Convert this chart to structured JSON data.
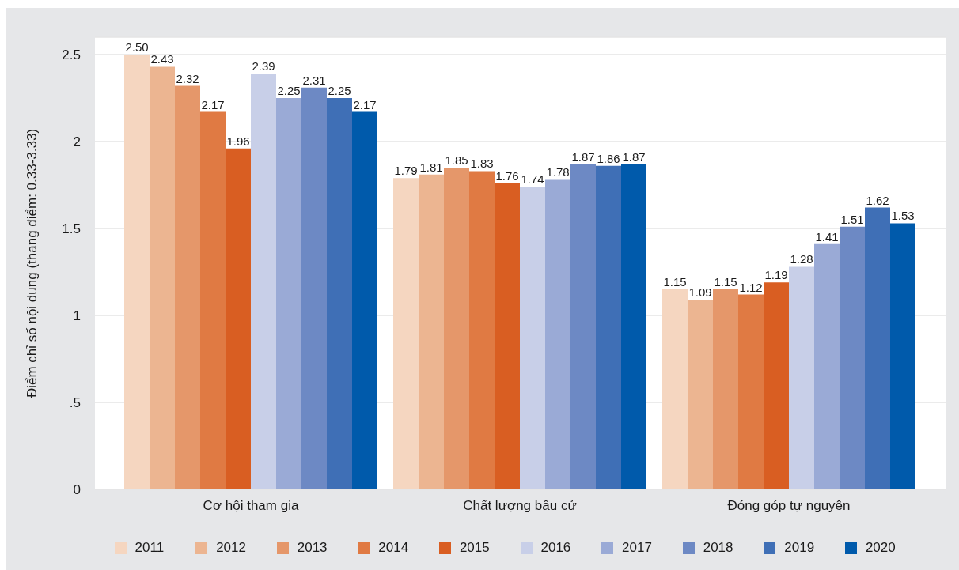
{
  "chart_data": {
    "type": "bar",
    "ylabel": "Điểm chỉ số nội dung (thang điểm: 0.33-3.33)",
    "categories": [
      "Cơ hội tham gia",
      "Chất lượng bầu cử",
      "Đóng góp tự nguyên"
    ],
    "series": [
      {
        "name": "2011",
        "color": "#f5d6c0",
        "values": [
          2.5,
          1.79,
          1.15
        ],
        "value_labels": [
          "2.50",
          "1.79",
          "1.15"
        ]
      },
      {
        "name": "2012",
        "color": "#ecb591",
        "values": [
          2.43,
          1.81,
          1.09
        ],
        "value_labels": [
          "2.43",
          "1.81",
          "1.09"
        ]
      },
      {
        "name": "2013",
        "color": "#e5976a",
        "values": [
          2.32,
          1.85,
          1.15
        ],
        "value_labels": [
          "2.32",
          "1.85",
          "1.15"
        ]
      },
      {
        "name": "2014",
        "color": "#e07a43",
        "values": [
          2.17,
          1.83,
          1.12
        ],
        "value_labels": [
          "2.17",
          "1.83",
          "1.12"
        ]
      },
      {
        "name": "2015",
        "color": "#d95e22",
        "values": [
          1.96,
          1.76,
          1.19
        ],
        "value_labels": [
          "1.96",
          "1.76",
          "1.19"
        ]
      },
      {
        "name": "2016",
        "color": "#c8cfe8",
        "values": [
          2.39,
          1.74,
          1.28
        ],
        "value_labels": [
          "2.39",
          "1.74",
          "1.28"
        ]
      },
      {
        "name": "2017",
        "color": "#9aaad6",
        "values": [
          2.25,
          1.78,
          1.41
        ],
        "value_labels": [
          "2.25",
          "1.78",
          "1.41"
        ]
      },
      {
        "name": "2018",
        "color": "#6d89c4",
        "values": [
          2.31,
          1.87,
          1.51
        ],
        "value_labels": [
          "2.31",
          "1.87",
          "1.51"
        ]
      },
      {
        "name": "2019",
        "color": "#3f6fb6",
        "values": [
          2.25,
          1.86,
          1.62
        ],
        "value_labels": [
          "2.25",
          "1.86",
          "1.62"
        ]
      },
      {
        "name": "2020",
        "color": "#005aab",
        "values": [
          2.17,
          1.87,
          1.53
        ],
        "value_labels": [
          "2.17",
          "1.87",
          "1.53"
        ]
      }
    ],
    "ylim": [
      0,
      2.6
    ],
    "yticks": [
      0,
      {
        "value": 0.5,
        "label": ".5"
      },
      1,
      1.5,
      2,
      2.5
    ],
    "grid": "y",
    "legend": "bottom"
  }
}
